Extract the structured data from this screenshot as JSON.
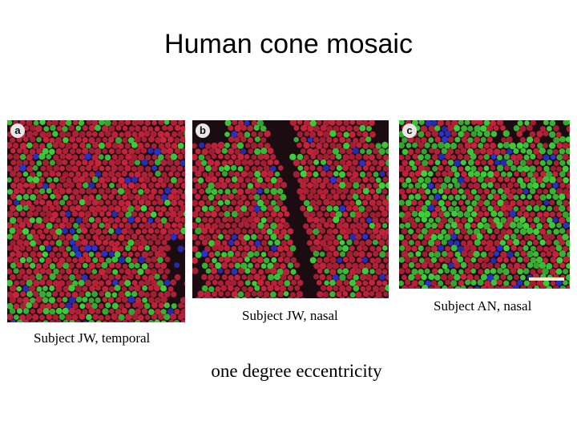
{
  "title": "Human cone mosaic",
  "panels": [
    {
      "letter": "a",
      "caption": "Subject JW, temporal"
    },
    {
      "letter": "b",
      "caption": "Subject JW, nasal"
    },
    {
      "letter": "c",
      "caption": "Subject AN, nasal"
    }
  ],
  "subtitle": "one degree eccentricity",
  "colors": {
    "l_cone": "#c8243c",
    "m_cone": "#3ed23a",
    "s_cone": "#2a34d8",
    "background": "#1a0c10"
  }
}
